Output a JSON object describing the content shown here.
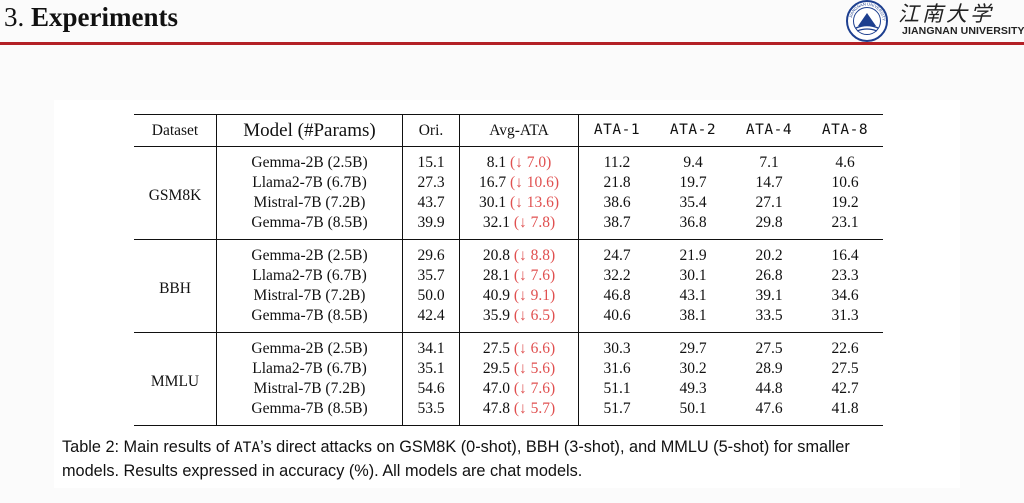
{
  "slide": {
    "number": "3.",
    "title": "Experiments"
  },
  "logo": {
    "chinese": "江南大学",
    "english": "JIANGNAN UNIVERSITY",
    "emblem_text": "JIANGNAN UNIVERSITY"
  },
  "table": {
    "headers": {
      "dataset": "Dataset",
      "model": "Model (#Params)",
      "ori": "Ori.",
      "avg": "Avg-ATA",
      "ata1": "ATA-1",
      "ata2": "ATA-2",
      "ata4": "ATA-4",
      "ata8": "ATA-8"
    },
    "groups": [
      {
        "dataset": "GSM8K",
        "rows": [
          {
            "model": "Gemma-2B (2.5B)",
            "ori": "15.1",
            "avg": "8.1",
            "drop": "(↓ 7.0)",
            "ata1": "11.2",
            "ata2": "9.4",
            "ata4": "7.1",
            "ata8": "4.6"
          },
          {
            "model": "Llama2-7B (6.7B)",
            "ori": "27.3",
            "avg": "16.7",
            "drop": "(↓ 10.6)",
            "ata1": "21.8",
            "ata2": "19.7",
            "ata4": "14.7",
            "ata8": "10.6"
          },
          {
            "model": "Mistral-7B (7.2B)",
            "ori": "43.7",
            "avg": "30.1",
            "drop": "(↓ 13.6)",
            "ata1": "38.6",
            "ata2": "35.4",
            "ata4": "27.1",
            "ata8": "19.2"
          },
          {
            "model": "Gemma-7B (8.5B)",
            "ori": "39.9",
            "avg": "32.1",
            "drop": "(↓ 7.8)",
            "ata1": "38.7",
            "ata2": "36.8",
            "ata4": "29.8",
            "ata8": "23.1"
          }
        ]
      },
      {
        "dataset": "BBH",
        "rows": [
          {
            "model": "Gemma-2B (2.5B)",
            "ori": "29.6",
            "avg": "20.8",
            "drop": "(↓ 8.8)",
            "ata1": "24.7",
            "ata2": "21.9",
            "ata4": "20.2",
            "ata8": "16.4"
          },
          {
            "model": "Llama2-7B (6.7B)",
            "ori": "35.7",
            "avg": "28.1",
            "drop": "(↓ 7.6)",
            "ata1": "32.2",
            "ata2": "30.1",
            "ata4": "26.8",
            "ata8": "23.3"
          },
          {
            "model": "Mistral-7B (7.2B)",
            "ori": "50.0",
            "avg": "40.9",
            "drop": "(↓ 9.1)",
            "ata1": "46.8",
            "ata2": "43.1",
            "ata4": "39.1",
            "ata8": "34.6"
          },
          {
            "model": "Gemma-7B (8.5B)",
            "ori": "42.4",
            "avg": "35.9",
            "drop": "(↓ 6.5)",
            "ata1": "40.6",
            "ata2": "38.1",
            "ata4": "33.5",
            "ata8": "31.3"
          }
        ]
      },
      {
        "dataset": "MMLU",
        "rows": [
          {
            "model": "Gemma-2B (2.5B)",
            "ori": "34.1",
            "avg": "27.5",
            "drop": "(↓ 6.6)",
            "ata1": "30.3",
            "ata2": "29.7",
            "ata4": "27.5",
            "ata8": "22.6"
          },
          {
            "model": "Llama2-7B (6.7B)",
            "ori": "35.1",
            "avg": "29.5",
            "drop": "(↓ 5.6)",
            "ata1": "31.6",
            "ata2": "30.2",
            "ata4": "28.9",
            "ata8": "27.5"
          },
          {
            "model": "Mistral-7B (7.2B)",
            "ori": "54.6",
            "avg": "47.0",
            "drop": "(↓ 7.6)",
            "ata1": "51.1",
            "ata2": "49.3",
            "ata4": "44.8",
            "ata8": "42.7"
          },
          {
            "model": "Gemma-7B (8.5B)",
            "ori": "53.5",
            "avg": "47.8",
            "drop": "(↓ 5.7)",
            "ata1": "51.7",
            "ata2": "50.1",
            "ata4": "47.6",
            "ata8": "41.8"
          }
        ]
      }
    ]
  },
  "caption": {
    "prefix": "Table 2: Main results of ",
    "method": "ATA",
    "line1_rest": "’s direct attacks on GSM8K (0-shot), BBH (3-shot), and MMLU (5-shot) for smaller",
    "line2": "models. Results expressed in accuracy (%). All models are chat models."
  },
  "colors": {
    "accent_red": "#b32025",
    "drop_red": "#e05050"
  }
}
